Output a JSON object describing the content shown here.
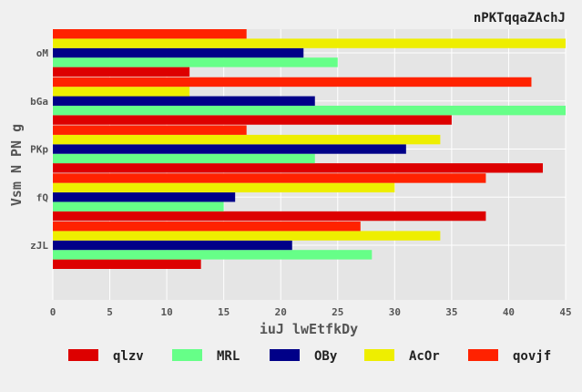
{
  "chart_data": {
    "type": "bar",
    "orientation": "horizontal",
    "title": "nPKTqqaZAchJ",
    "xlabel": "iuJ  lwEtfkDy",
    "ylabel": "Vsm N PN g",
    "categories": [
      "zJL",
      "fQ",
      "PKp",
      "bGa",
      "oM"
    ],
    "xlim": [
      0,
      45
    ],
    "xticks": [
      0,
      5,
      10,
      15,
      20,
      25,
      30,
      35,
      40,
      45
    ],
    "grid": true,
    "legend_position": "bottom",
    "series": [
      {
        "name": "qlzv",
        "color": "#dd0000",
        "values": [
          13,
          38,
          43,
          35,
          12
        ]
      },
      {
        "name": "MRL",
        "color": "#66ff88",
        "values": [
          28,
          15,
          23,
          45,
          25
        ]
      },
      {
        "name": "OBy",
        "color": "#000088",
        "values": [
          21,
          16,
          31,
          23,
          22
        ]
      },
      {
        "name": "AcOr",
        "color": "#eeee00",
        "values": [
          34,
          30,
          34,
          12,
          45
        ]
      },
      {
        "name": "qovjf",
        "color": "#ff2200",
        "values": [
          27,
          38,
          17,
          42,
          17
        ]
      }
    ]
  }
}
